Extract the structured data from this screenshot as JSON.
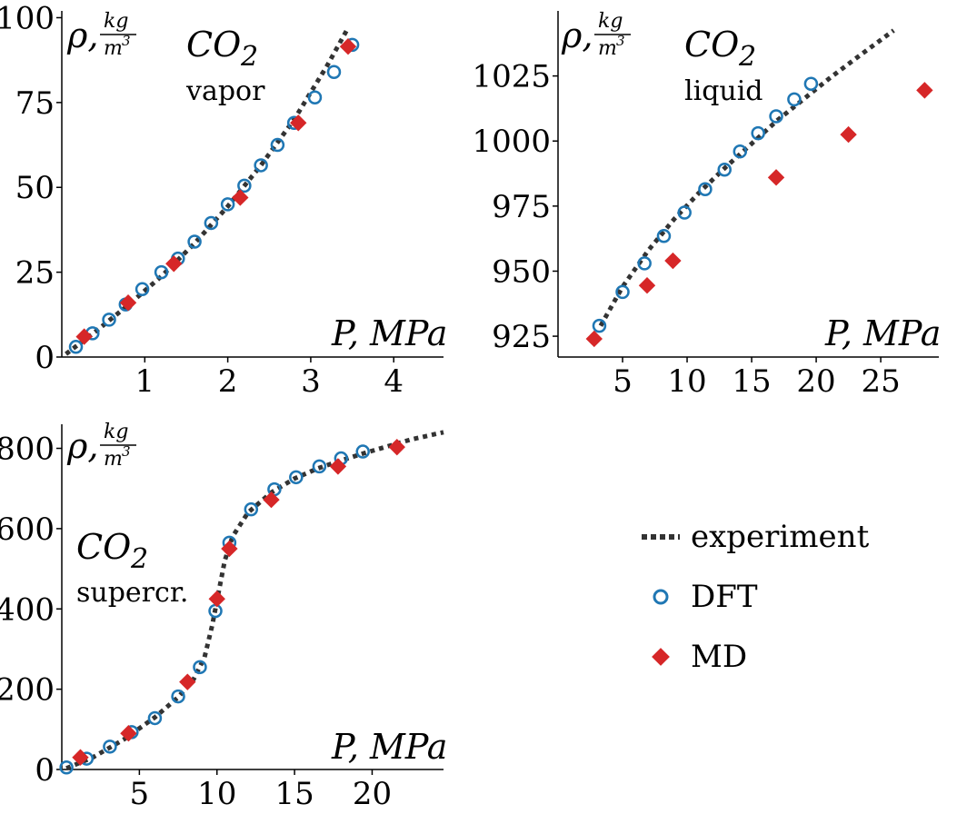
{
  "chart_data": [
    {
      "id": "vapor",
      "type": "line+scatter",
      "title_main": "CO",
      "title_sub": "2",
      "state": "vapor",
      "ylabel_rho": "ρ,",
      "ylabel_num": "kg",
      "ylabel_den": "m",
      "ylabel_den_exp": "3",
      "xlabel": "P, MPa",
      "xlim": [
        0,
        4.6
      ],
      "ylim": [
        0,
        102
      ],
      "xticks": [
        1,
        2,
        3,
        4
      ],
      "yticks": [
        0,
        25,
        50,
        75,
        100
      ],
      "experiment": {
        "x": [
          0.05,
          0.4,
          0.8,
          1.2,
          1.6,
          2.0,
          2.4,
          2.8,
          3.2,
          3.45
        ],
        "y": [
          0.9,
          7.4,
          15.3,
          23.8,
          33.5,
          44.4,
          56.5,
          70.0,
          86.0,
          97.0
        ]
      },
      "dft": {
        "x": [
          0.17,
          0.37,
          0.57,
          0.77,
          0.97,
          1.2,
          1.4,
          1.6,
          1.8,
          2.0,
          2.2,
          2.4,
          2.6,
          2.8,
          3.05,
          3.28,
          3.5
        ],
        "y": [
          3.0,
          7.0,
          11.0,
          15.5,
          20.0,
          25.0,
          29.0,
          34.0,
          39.5,
          45.0,
          50.5,
          56.5,
          62.5,
          69.0,
          76.5,
          84.0,
          92.0
        ]
      },
      "md": {
        "x": [
          0.27,
          0.8,
          1.35,
          2.15,
          2.85,
          3.45
        ],
        "y": [
          6.0,
          16.0,
          27.5,
          47.0,
          69.0,
          91.5
        ]
      }
    },
    {
      "id": "liquid",
      "type": "line+scatter",
      "title_main": "CO",
      "title_sub": "2",
      "state": "liquid",
      "ylabel_rho": "ρ,",
      "ylabel_num": "kg",
      "ylabel_den": "m",
      "ylabel_den_exp": "3",
      "xlabel": "P, MPa",
      "xlim": [
        0,
        29.5
      ],
      "ylim": [
        917,
        1050
      ],
      "xticks": [
        5,
        10,
        15,
        20,
        25
      ],
      "yticks": [
        925,
        950,
        975,
        1000,
        1025
      ],
      "experiment": {
        "x": [
          3.3,
          5.0,
          7.0,
          9.0,
          11.0,
          13.0,
          15.0,
          17.0,
          19.0,
          21.0,
          23.0,
          26.0
        ],
        "y": [
          929.0,
          944.0,
          958.0,
          970.0,
          980.5,
          990.0,
          999.0,
          1008.0,
          1016.0,
          1024.0,
          1031.5,
          1042.5
        ]
      },
      "dft": {
        "x": [
          3.2,
          5.0,
          6.7,
          8.2,
          9.8,
          11.4,
          12.9,
          14.1,
          15.5,
          16.9,
          18.3,
          19.6
        ],
        "y": [
          929.0,
          942.0,
          953.0,
          963.5,
          972.5,
          981.5,
          989.0,
          996.0,
          1003.0,
          1009.5,
          1016.0,
          1022.0
        ]
      },
      "md": {
        "x": [
          2.8,
          6.9,
          8.9,
          16.9,
          22.5,
          28.4
        ],
        "y": [
          924.0,
          944.5,
          954.0,
          986.0,
          1002.5,
          1019.5
        ]
      }
    },
    {
      "id": "supercritical",
      "type": "line+scatter",
      "title_main": "CO",
      "title_sub": "2",
      "state": "supercr.",
      "ylabel_rho": "ρ,",
      "ylabel_num": "kg",
      "ylabel_den": "m",
      "ylabel_den_exp": "3",
      "xlabel": "P, MPa",
      "xlim": [
        0,
        24.6
      ],
      "ylim": [
        0,
        860
      ],
      "xticks": [
        5,
        10,
        15,
        20
      ],
      "yticks": [
        0,
        200,
        400,
        600,
        800
      ],
      "experiment": {
        "x": [
          0.3,
          2.0,
          4.0,
          6.0,
          7.5,
          8.5,
          9.2,
          9.7,
          10.1,
          10.5,
          11.0,
          12.0,
          13.5,
          15.0,
          16.5,
          18.0,
          19.5,
          21.0,
          22.5,
          24.6
        ],
        "y": [
          3.0,
          30.0,
          75.0,
          130.0,
          180.0,
          225.0,
          280.0,
          360.0,
          440.0,
          520.0,
          580.0,
          640.0,
          690.0,
          725.0,
          750.0,
          770.0,
          788.0,
          805.0,
          822.0,
          840.0
        ]
      },
      "dft": {
        "x": [
          0.3,
          1.6,
          3.1,
          4.5,
          6.0,
          7.5,
          8.9,
          9.9,
          10.8,
          12.2,
          13.7,
          15.1,
          16.6,
          18.0,
          19.4
        ],
        "y": [
          5.0,
          27.0,
          57.0,
          93.0,
          128.0,
          182.0,
          255.0,
          395.0,
          565.0,
          648.0,
          698.0,
          728.0,
          755.0,
          775.0,
          792.0
        ]
      },
      "md": {
        "x": [
          1.2,
          4.3,
          8.1,
          10.0,
          10.8,
          13.5,
          17.8,
          21.6
        ],
        "y": [
          30.0,
          90.0,
          218.0,
          425.0,
          550.0,
          672.0,
          755.0,
          803.0
        ]
      }
    }
  ],
  "legend": {
    "experiment": "experiment",
    "dft": "DFT",
    "md": "MD"
  },
  "colors": {
    "experiment": "#333333",
    "dft": "#1f77b4",
    "md": "#d62728"
  }
}
